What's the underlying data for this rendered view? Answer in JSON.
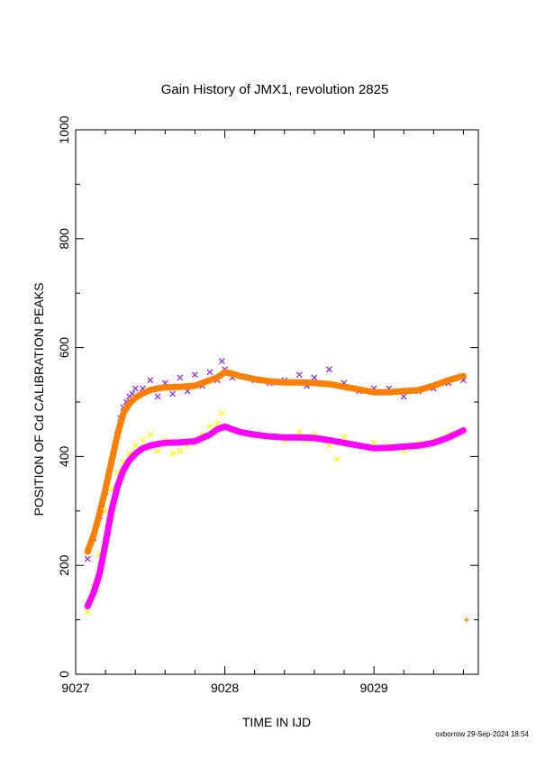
{
  "chart_data": {
    "type": "scatter",
    "title": "Gain History of JMX1, revolution 2825",
    "xlabel": "TIME IN IJD",
    "ylabel": "POSITION OF Cd CALIBRATION PEAKS",
    "xlim": [
      9027,
      9029.7
    ],
    "ylim": [
      0,
      1000
    ],
    "x_ticks": [
      9027,
      9028,
      9029
    ],
    "x_tick_labels": [
      "9027",
      "9028",
      "9029"
    ],
    "y_ticks": [
      0,
      200,
      400,
      600,
      800,
      1000
    ],
    "y_tick_labels": [
      "0",
      "200",
      "400",
      "600",
      "800",
      "1000"
    ],
    "grid": false,
    "colors": {
      "upper_scatter": "#8a2be2",
      "upper_fit": "#ff7f00",
      "lower_scatter": "#ffff00",
      "lower_fit": "#ff00ff"
    },
    "series": [
      {
        "marker": "x",
        "color": "#8a2be2",
        "x": [
          9027.08,
          9027.12,
          9027.16,
          9027.2,
          9027.24,
          9027.28,
          9027.3,
          9027.32,
          9027.34,
          9027.36,
          9027.38,
          9027.4,
          9027.45,
          9027.5,
          9027.55,
          9027.6,
          9027.65,
          9027.7,
          9027.75,
          9027.8,
          9027.85,
          9027.9,
          9027.95,
          9027.98,
          9028.0,
          9028.05,
          9028.2,
          9028.3,
          9028.4,
          9028.5,
          9028.55,
          9028.6,
          9028.7,
          9028.8,
          9028.9,
          9029.0,
          9029.1,
          9029.2,
          9029.3,
          9029.4,
          9029.5,
          9029.6
        ],
        "y": [
          212,
          250,
          290,
          335,
          390,
          440,
          470,
          490,
          500,
          510,
          515,
          525,
          525,
          540,
          510,
          535,
          515,
          545,
          520,
          550,
          530,
          555,
          540,
          575,
          560,
          545,
          540,
          535,
          540,
          550,
          530,
          545,
          560,
          535,
          520,
          525,
          525,
          510,
          520,
          525,
          535,
          540
        ]
      },
      {
        "marker": "line",
        "color": "#ff7f00",
        "x": [
          9027.08,
          9027.12,
          9027.16,
          9027.2,
          9027.24,
          9027.28,
          9027.32,
          9027.36,
          9027.4,
          9027.45,
          9027.5,
          9027.55,
          9027.6,
          9027.7,
          9027.8,
          9027.9,
          9027.95,
          9028.0,
          9028.05,
          9028.1,
          9028.2,
          9028.3,
          9028.4,
          9028.5,
          9028.6,
          9028.7,
          9028.8,
          9028.9,
          9029.0,
          9029.1,
          9029.2,
          9029.3,
          9029.4,
          9029.5,
          9029.6
        ],
        "y": [
          225,
          255,
          295,
          340,
          390,
          440,
          480,
          497,
          508,
          516,
          522,
          525,
          527,
          528,
          530,
          540,
          545,
          555,
          552,
          548,
          542,
          538,
          536,
          536,
          535,
          533,
          528,
          523,
          518,
          518,
          520,
          522,
          530,
          540,
          548
        ]
      },
      {
        "marker": "x",
        "color": "#ffff00",
        "x": [
          9027.08,
          9027.12,
          9027.16,
          9027.2,
          9027.24,
          9027.28,
          9027.32,
          9027.36,
          9027.4,
          9027.45,
          9027.5,
          9027.55,
          9027.6,
          9027.65,
          9027.7,
          9027.75,
          9027.8,
          9027.85,
          9027.9,
          9027.95,
          9027.98,
          9028.0,
          9028.2,
          9028.4,
          9028.5,
          9028.55,
          9028.6,
          9028.7,
          9028.75,
          9028.8,
          9028.9,
          9029.0,
          9029.1,
          9029.2,
          9029.3,
          9029.4,
          9029.5,
          9029.6
        ],
        "y": [
          115,
          160,
          220,
          300,
          340,
          370,
          390,
          405,
          420,
          430,
          440,
          410,
          430,
          405,
          410,
          420,
          425,
          440,
          455,
          460,
          480,
          455,
          440,
          430,
          445,
          430,
          440,
          420,
          395,
          435,
          420,
          425,
          420,
          410,
          425,
          430,
          440,
          445
        ]
      },
      {
        "marker": "line",
        "color": "#ff00ff",
        "x": [
          9027.08,
          9027.12,
          9027.16,
          9027.2,
          9027.24,
          9027.28,
          9027.32,
          9027.36,
          9027.4,
          9027.45,
          9027.5,
          9027.55,
          9027.6,
          9027.7,
          9027.8,
          9027.9,
          9027.95,
          9028.0,
          9028.05,
          9028.1,
          9028.2,
          9028.3,
          9028.4,
          9028.5,
          9028.6,
          9028.7,
          9028.8,
          9028.9,
          9029.0,
          9029.1,
          9029.2,
          9029.3,
          9029.4,
          9029.5,
          9029.6
        ],
        "y": [
          125,
          150,
          185,
          240,
          300,
          345,
          375,
          393,
          405,
          415,
          420,
          423,
          425,
          426,
          428,
          440,
          450,
          455,
          450,
          445,
          440,
          437,
          435,
          435,
          434,
          430,
          425,
          420,
          415,
          416,
          418,
          420,
          425,
          435,
          448
        ]
      },
      {
        "marker": "+",
        "color": "#ff7f00",
        "x": [
          9029.62
        ],
        "y": [
          100
        ]
      }
    ]
  },
  "footer": "oxborrow 29-Sep-2024 18:54"
}
